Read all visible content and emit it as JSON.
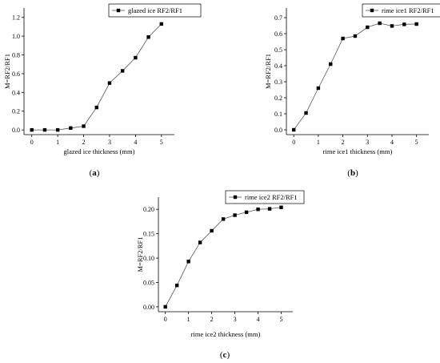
{
  "chart_data": [
    {
      "type": "line",
      "x": [
        0,
        0.5,
        1,
        1.5,
        2,
        2.5,
        3,
        3.5,
        4,
        4.5,
        5
      ],
      "series": [
        {
          "name": "glazed ice RF2/RF1",
          "values": [
            0.0,
            0.0,
            0.0,
            0.02,
            0.04,
            0.24,
            0.5,
            0.63,
            0.77,
            0.99,
            1.13
          ]
        }
      ],
      "xlabel": "glazed ice thickness (mm)",
      "ylabel": "M=RF2/RF1",
      "xticks": [
        "0",
        "1",
        "2",
        "3",
        "4",
        "5"
      ],
      "yticks": [
        "0.0",
        "0.2",
        "0.4",
        "0.6",
        "0.8",
        "1.0",
        "1.2"
      ],
      "xlim": [
        -0.3,
        5.5
      ],
      "ylim": [
        -0.05,
        1.3
      ],
      "marker": "square",
      "legend_position": "top-right",
      "caption": {
        "open": "(",
        "letter": "a",
        "close": ")"
      }
    },
    {
      "type": "line",
      "x": [
        0,
        0.5,
        1,
        1.5,
        2,
        2.5,
        3,
        3.5,
        4,
        4.5,
        5
      ],
      "series": [
        {
          "name": "rime ice1 RF2/RF1",
          "values": [
            0.0,
            0.105,
            0.26,
            0.41,
            0.57,
            0.585,
            0.64,
            0.665,
            0.648,
            0.658,
            0.66
          ]
        }
      ],
      "xlabel": "rime ice1 thickness (mm)",
      "ylabel": "M=RF2/RF1",
      "xticks": [
        "0",
        "1",
        "2",
        "3",
        "4",
        "5"
      ],
      "yticks": [
        "0.0",
        "0.1",
        "0.2",
        "0.3",
        "0.4",
        "0.5",
        "0.6",
        "0.7"
      ],
      "xlim": [
        -0.3,
        5.5
      ],
      "ylim": [
        -0.03,
        0.76
      ],
      "marker": "square",
      "legend_position": "top-right",
      "caption": {
        "open": "(",
        "letter": "b",
        "close": ")"
      }
    },
    {
      "type": "line",
      "x": [
        0,
        0.5,
        1,
        1.5,
        2,
        2.5,
        3,
        3.5,
        4,
        4.5,
        5
      ],
      "series": [
        {
          "name": "rime ice2 RF2/RF1",
          "values": [
            0.0,
            0.044,
            0.093,
            0.132,
            0.156,
            0.18,
            0.188,
            0.194,
            0.2,
            0.201,
            0.204
          ]
        }
      ],
      "xlabel": "rime ice2 thickness (mm)",
      "ylabel": "M=RF2/RF1",
      "xticks": [
        "0",
        "1",
        "2",
        "3",
        "4",
        "5"
      ],
      "yticks": [
        "0.00",
        "0.05",
        "0.10",
        "0.15",
        "0.20"
      ],
      "xlim": [
        -0.3,
        5.5
      ],
      "ylim": [
        -0.01,
        0.225
      ],
      "marker": "square",
      "legend_position": "top-left",
      "caption": {
        "open": "(",
        "letter": "c",
        "close": ")"
      }
    }
  ]
}
